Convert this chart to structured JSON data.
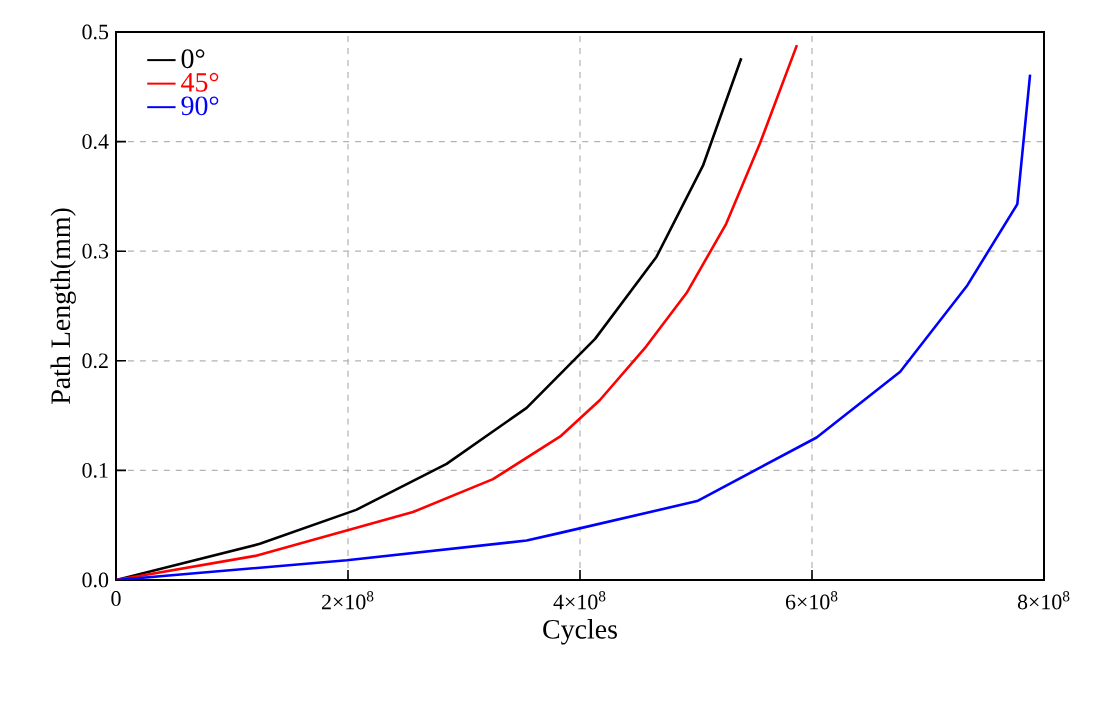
{
  "chart_data": {
    "type": "line",
    "xlabel": "Cycles",
    "ylabel": "Path Length(mm)",
    "xlim": [
      0,
      800000000
    ],
    "ylim": [
      0,
      0.5
    ],
    "xticks": [
      0,
      {
        "value": 200000000,
        "label": "2×10$^{8}$"
      },
      {
        "value": 400000000,
        "label": "4×10$^{8}$"
      },
      {
        "value": 600000000,
        "label": "6×10$^{8}$"
      },
      {
        "value": 800000000,
        "label": "8×10$^{8}$"
      }
    ],
    "yticks": [
      {
        "value": 0,
        "label": "0.0"
      },
      {
        "value": 0.1,
        "label": "0.1"
      },
      {
        "value": 0.2,
        "label": "0.2"
      },
      {
        "value": 0.3,
        "label": "0.3"
      },
      {
        "value": 0.4,
        "label": "0.4"
      },
      {
        "value": 0.5,
        "label": "0.5"
      }
    ],
    "grid": true,
    "legend": "top left",
    "marker": "none",
    "line_style": "solid",
    "series": [
      {
        "name": "0°",
        "color": "#000000",
        "x": [
          0,
          124000000,
          207000000,
          285000000,
          354000000,
          413000000,
          466000000,
          506000000,
          539000000
        ],
        "values": [
          0,
          0.033,
          0.064,
          0.106,
          0.157,
          0.22,
          0.295,
          0.378,
          0.476
        ]
      },
      {
        "name": "45°",
        "color": "#ff0000",
        "x": [
          0,
          120000000,
          256000000,
          325000000,
          383000000,
          417000000,
          457000000,
          492000000,
          526000000,
          555000000,
          587000000
        ],
        "values": [
          0,
          0.022,
          0.062,
          0.092,
          0.131,
          0.164,
          0.213,
          0.262,
          0.325,
          0.398,
          0.488
        ]
      },
      {
        "name": "90°",
        "color": "#0000ff",
        "x": [
          0,
          199000000,
          354000000,
          383000000,
          501000000,
          604000000,
          676000000,
          734000000,
          777000000,
          788000000
        ],
        "values": [
          0,
          0.018,
          0.036,
          0.043,
          0.072,
          0.13,
          0.19,
          0.269,
          0.343,
          0.461
        ]
      }
    ]
  }
}
